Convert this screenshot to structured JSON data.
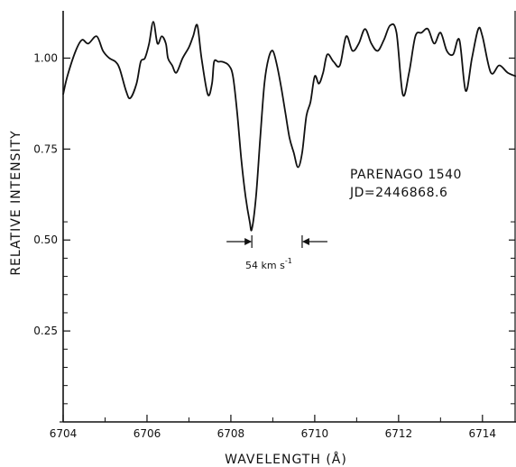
{
  "chart_data": {
    "type": "line",
    "xlabel": "WAVELENGTH (Å)",
    "ylabel": "RELATIVE INTENSITY",
    "xlim": [
      6704,
      6714.8
    ],
    "ylim": [
      0,
      1.13
    ],
    "x_ticks": [
      6704,
      6706,
      6708,
      6710,
      6712,
      6714
    ],
    "y_ticks": [
      0.25,
      0.5,
      0.75,
      1.0
    ],
    "x_tick_labels": [
      "6704",
      "6706",
      "6708",
      "6710",
      "6712",
      "6714"
    ],
    "y_tick_labels": [
      "0.25",
      "0.50",
      "0.75",
      "1.00"
    ],
    "grid": false,
    "annotations": {
      "star_name": "PARENAGO 1540",
      "julian_date": "JD=2446868.6",
      "separation_label": "54 km s",
      "separation_exponent": "-1",
      "separation_marks": [
        6708.5,
        6709.7
      ]
    },
    "series": [
      {
        "x": [
          6704.0,
          6704.1,
          6704.3,
          6704.45,
          6704.6,
          6704.8,
          6704.95,
          6705.1,
          6705.25,
          6705.35,
          6705.5,
          6705.6,
          6705.75,
          6705.85,
          6705.95,
          6706.05,
          6706.15,
          6706.25,
          6706.35,
          6706.45,
          6706.5,
          6706.6,
          6706.7,
          6706.85,
          6707.0,
          6707.1,
          6707.2,
          6707.3,
          6707.45,
          6707.55,
          6707.6,
          6707.7,
          6707.8,
          6707.95,
          6708.05,
          6708.15,
          6708.25,
          6708.35,
          6708.45,
          6708.5,
          6708.6,
          6708.7,
          6708.8,
          6708.9,
          6709.0,
          6709.1,
          6709.2,
          6709.3,
          6709.4,
          6709.5,
          6709.6,
          6709.7,
          6709.8,
          6709.9,
          6710.0,
          6710.1,
          6710.2,
          6710.3,
          6710.45,
          6710.6,
          6710.75,
          6710.9,
          6711.05,
          6711.2,
          6711.35,
          6711.5,
          6711.65,
          6711.8,
          6711.95,
          6712.1,
          6712.25,
          6712.4,
          6712.55,
          6712.7,
          6712.85,
          6713.0,
          6713.15,
          6713.3,
          6713.45,
          6713.6,
          6713.75,
          6713.9,
          6714.0,
          6714.2,
          6714.4,
          6714.6,
          6714.8
        ],
        "values": [
          0.9,
          0.95,
          1.02,
          1.05,
          1.04,
          1.06,
          1.02,
          1.0,
          0.99,
          0.97,
          0.91,
          0.89,
          0.93,
          0.99,
          1.0,
          1.04,
          1.1,
          1.04,
          1.06,
          1.04,
          1.0,
          0.98,
          0.96,
          1.0,
          1.03,
          1.06,
          1.09,
          1.0,
          0.9,
          0.93,
          0.99,
          0.99,
          0.99,
          0.98,
          0.95,
          0.85,
          0.72,
          0.62,
          0.55,
          0.53,
          0.62,
          0.78,
          0.93,
          1.0,
          1.02,
          0.98,
          0.92,
          0.85,
          0.78,
          0.74,
          0.7,
          0.74,
          0.84,
          0.88,
          0.95,
          0.93,
          0.96,
          1.01,
          0.99,
          0.98,
          1.06,
          1.02,
          1.04,
          1.08,
          1.04,
          1.02,
          1.05,
          1.09,
          1.07,
          0.9,
          0.96,
          1.06,
          1.07,
          1.08,
          1.04,
          1.07,
          1.02,
          1.01,
          1.05,
          0.91,
          1.0,
          1.08,
          1.06,
          0.96,
          0.98,
          0.96,
          0.95
        ]
      }
    ]
  }
}
